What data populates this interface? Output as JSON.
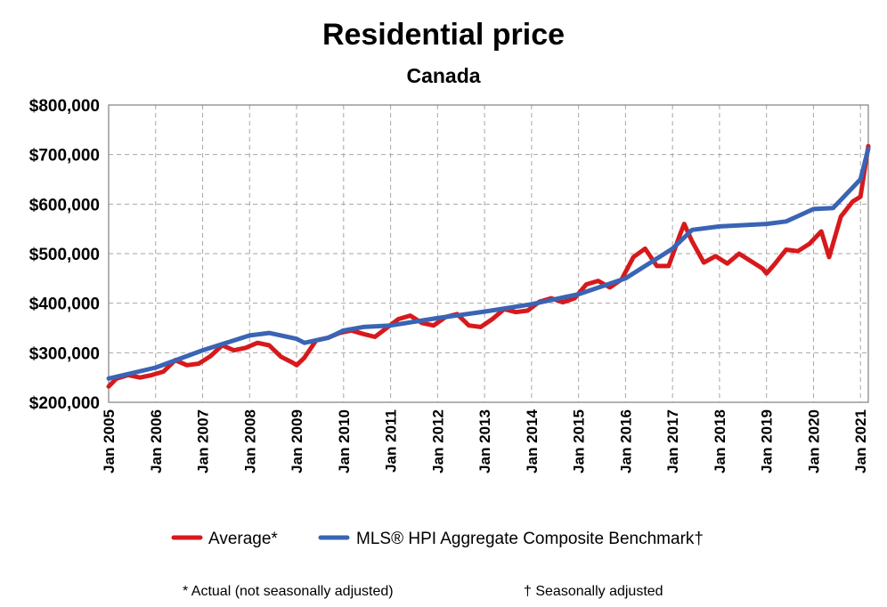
{
  "chart_data": {
    "type": "line",
    "title": "Residential price",
    "subtitle": "Canada",
    "xlabel": "",
    "ylabel": "",
    "ylim": [
      200000,
      800000
    ],
    "xlim": [
      "2005-01",
      "2021-03"
    ],
    "y_ticks": [
      "$200,000",
      "$300,000",
      "$400,000",
      "$500,000",
      "$600,000",
      "$700,000",
      "$800,000"
    ],
    "y_tick_values": [
      200000,
      300000,
      400000,
      500000,
      600000,
      700000,
      800000
    ],
    "x_ticks": [
      "Jan 2005",
      "Jan 2006",
      "Jan 2007",
      "Jan 2008",
      "Jan 2009",
      "Jan 2010",
      "Jan 2011",
      "Jan 2012",
      "Jan 2013",
      "Jan 2014",
      "Jan 2015",
      "Jan 2016",
      "Jan 2017",
      "Jan 2018",
      "Jan 2019",
      "Jan 2020",
      "Jan 2021"
    ],
    "x_tick_values": [
      "2005-01",
      "2006-01",
      "2007-01",
      "2008-01",
      "2009-01",
      "2010-01",
      "2011-01",
      "2012-01",
      "2013-01",
      "2014-01",
      "2015-01",
      "2016-01",
      "2017-01",
      "2018-01",
      "2019-01",
      "2020-01",
      "2021-01"
    ],
    "grid": true,
    "legend_position": "bottom",
    "series": [
      {
        "name": "Average*",
        "color": "#d7191c",
        "points": [
          [
            "2005-01",
            232000
          ],
          [
            "2005-03",
            248000
          ],
          [
            "2005-06",
            255000
          ],
          [
            "2005-09",
            250000
          ],
          [
            "2005-12",
            255000
          ],
          [
            "2006-03",
            262000
          ],
          [
            "2006-06",
            285000
          ],
          [
            "2006-09",
            275000
          ],
          [
            "2006-12",
            278000
          ],
          [
            "2007-03",
            293000
          ],
          [
            "2007-06",
            315000
          ],
          [
            "2007-09",
            305000
          ],
          [
            "2007-12",
            310000
          ],
          [
            "2008-03",
            320000
          ],
          [
            "2008-06",
            315000
          ],
          [
            "2008-09",
            292000
          ],
          [
            "2008-12",
            280000
          ],
          [
            "2009-01",
            275000
          ],
          [
            "2009-03",
            290000
          ],
          [
            "2009-06",
            325000
          ],
          [
            "2009-09",
            330000
          ],
          [
            "2009-12",
            340000
          ],
          [
            "2010-03",
            345000
          ],
          [
            "2010-06",
            338000
          ],
          [
            "2010-09",
            332000
          ],
          [
            "2010-12",
            350000
          ],
          [
            "2011-03",
            368000
          ],
          [
            "2011-06",
            375000
          ],
          [
            "2011-09",
            360000
          ],
          [
            "2011-12",
            355000
          ],
          [
            "2012-03",
            372000
          ],
          [
            "2012-06",
            378000
          ],
          [
            "2012-09",
            355000
          ],
          [
            "2012-12",
            352000
          ],
          [
            "2013-03",
            368000
          ],
          [
            "2013-06",
            388000
          ],
          [
            "2013-09",
            382000
          ],
          [
            "2013-12",
            385000
          ],
          [
            "2014-03",
            403000
          ],
          [
            "2014-06",
            410000
          ],
          [
            "2014-09",
            402000
          ],
          [
            "2014-12",
            410000
          ],
          [
            "2015-03",
            438000
          ],
          [
            "2015-06",
            445000
          ],
          [
            "2015-09",
            432000
          ],
          [
            "2015-12",
            448000
          ],
          [
            "2016-03",
            493000
          ],
          [
            "2016-06",
            510000
          ],
          [
            "2016-09",
            475000
          ],
          [
            "2016-12",
            475000
          ],
          [
            "2017-03",
            540000
          ],
          [
            "2017-04",
            560000
          ],
          [
            "2017-06",
            525000
          ],
          [
            "2017-09",
            482000
          ],
          [
            "2017-12",
            495000
          ],
          [
            "2018-03",
            480000
          ],
          [
            "2018-06",
            500000
          ],
          [
            "2018-09",
            485000
          ],
          [
            "2018-12",
            470000
          ],
          [
            "2019-01",
            460000
          ],
          [
            "2019-03",
            478000
          ],
          [
            "2019-06",
            508000
          ],
          [
            "2019-09",
            505000
          ],
          [
            "2019-12",
            520000
          ],
          [
            "2020-03",
            545000
          ],
          [
            "2020-05",
            493000
          ],
          [
            "2020-08",
            575000
          ],
          [
            "2020-11",
            605000
          ],
          [
            "2021-01",
            615000
          ],
          [
            "2021-03",
            717000
          ]
        ]
      },
      {
        "name": "MLS® HPI Aggregate Composite Benchmark†",
        "color": "#3a64b4",
        "points": [
          [
            "2005-01",
            248000
          ],
          [
            "2006-01",
            270000
          ],
          [
            "2007-01",
            305000
          ],
          [
            "2008-01",
            335000
          ],
          [
            "2008-06",
            340000
          ],
          [
            "2009-01",
            328000
          ],
          [
            "2009-03",
            320000
          ],
          [
            "2009-09",
            330000
          ],
          [
            "2010-01",
            345000
          ],
          [
            "2010-06",
            352000
          ],
          [
            "2011-01",
            355000
          ],
          [
            "2012-01",
            370000
          ],
          [
            "2013-01",
            383000
          ],
          [
            "2014-01",
            398000
          ],
          [
            "2015-01",
            418000
          ],
          [
            "2016-01",
            450000
          ],
          [
            "2017-01",
            510000
          ],
          [
            "2017-06",
            548000
          ],
          [
            "2018-01",
            555000
          ],
          [
            "2019-01",
            560000
          ],
          [
            "2019-06",
            565000
          ],
          [
            "2020-01",
            590000
          ],
          [
            "2020-06",
            592000
          ],
          [
            "2021-01",
            650000
          ],
          [
            "2021-03",
            712000
          ]
        ]
      }
    ],
    "footnotes": [
      "* Actual (not seasonally adjusted)",
      "† Seasonally adjusted"
    ]
  }
}
